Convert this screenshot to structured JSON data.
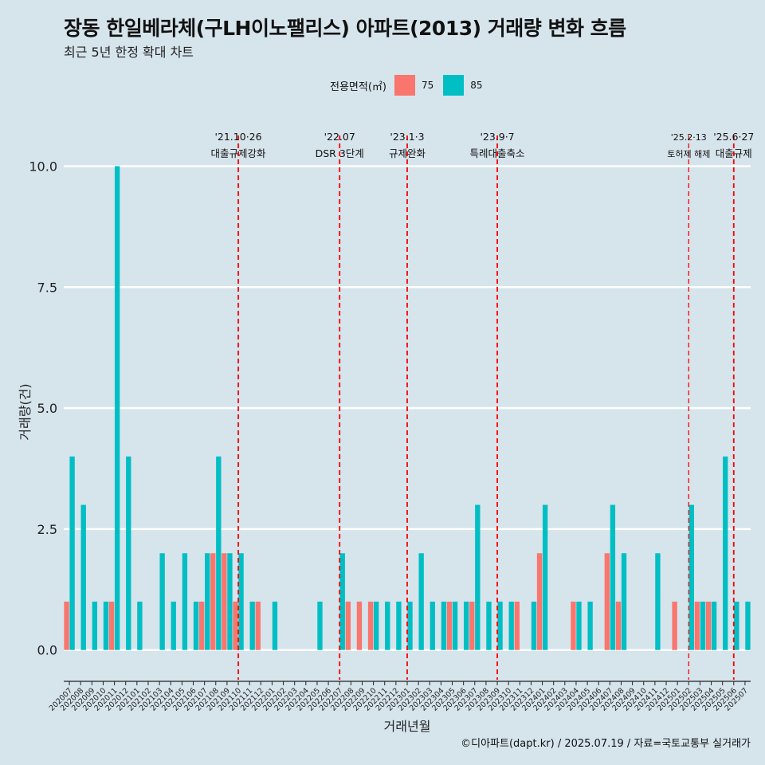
{
  "header": {
    "title": "장동 한일베라체(구LH이노팰리스) 아파트(2013) 거래량 변화 흐름",
    "subtitle": "최근 5년 한정 확대 차트"
  },
  "legend": {
    "title": "전용면적(㎡)",
    "items": [
      {
        "label": "75",
        "color": "#F8766D"
      },
      {
        "label": "85",
        "color": "#00BFC4"
      }
    ]
  },
  "caption": "©디아파트(dapt.kr) / 2025.07.19 / 자료=국토교통부 실거래가",
  "chart_data": {
    "type": "bar",
    "stacked": false,
    "dodged": true,
    "xlabel": "거래년월",
    "ylabel": "거래량(건)",
    "ylim": [
      -0.45,
      10.8
    ],
    "yticks": [
      0.0,
      2.5,
      5.0,
      7.5,
      10.0
    ],
    "ytick_labels": [
      "0.0",
      "2.5",
      "5.0",
      "7.5",
      "10.0"
    ],
    "grid": "horizontal",
    "legend_position": "top",
    "categories": [
      "202007",
      "202008",
      "202009",
      "202010",
      "202011",
      "202012",
      "202101",
      "202102",
      "202103",
      "202104",
      "202105",
      "202106",
      "202107",
      "202108",
      "202109",
      "202110",
      "202111",
      "202112",
      "202201",
      "202202",
      "202203",
      "202204",
      "202205",
      "202206",
      "202207",
      "202208",
      "202209",
      "202210",
      "202211",
      "202212",
      "202301",
      "202302",
      "202303",
      "202304",
      "202305",
      "202306",
      "202307",
      "202308",
      "202309",
      "202310",
      "202311",
      "202312",
      "202401",
      "202402",
      "202403",
      "202404",
      "202405",
      "202406",
      "202407",
      "202408",
      "202409",
      "202410",
      "202411",
      "202412",
      "202501",
      "202502",
      "202503",
      "202504",
      "202505",
      "202506",
      "202507"
    ],
    "series": [
      {
        "name": "75",
        "color": "#F8766D",
        "values": [
          1,
          0,
          0,
          0,
          1,
          0,
          0,
          0,
          0,
          0,
          0,
          0,
          1,
          2,
          2,
          1,
          0,
          1,
          0,
          0,
          0,
          0,
          0,
          0,
          0,
          1,
          1,
          1,
          0,
          0,
          0,
          0,
          0,
          0,
          1,
          0,
          1,
          0,
          0,
          0,
          1,
          0,
          2,
          0,
          0,
          1,
          0,
          0,
          2,
          1,
          0,
          0,
          0,
          0,
          1,
          0,
          1,
          1,
          0,
          0,
          0
        ]
      },
      {
        "name": "85",
        "color": "#00BFC4",
        "values": [
          4,
          3,
          1,
          1,
          10,
          4,
          1,
          0,
          2,
          1,
          2,
          1,
          2,
          4,
          2,
          2,
          1,
          0,
          1,
          0,
          0,
          0,
          1,
          0,
          2,
          0,
          0,
          1,
          1,
          1,
          1,
          2,
          1,
          1,
          1,
          1,
          3,
          1,
          1,
          1,
          0,
          1,
          3,
          0,
          0,
          1,
          1,
          0,
          3,
          2,
          0,
          0,
          2,
          0,
          0,
          3,
          1,
          1,
          4,
          1,
          1
        ]
      }
    ],
    "annotations": [
      {
        "x": "202110",
        "label_top": "'21.10·26",
        "label_bottom": "대출규제강화"
      },
      {
        "x": "202207",
        "label_top": "'22.07",
        "label_bottom": "DSR 3단계"
      },
      {
        "x": "202301",
        "label_top": "'23.1·3",
        "label_bottom": "규제완화"
      },
      {
        "x": "202309",
        "label_top": "'23.9·7",
        "label_bottom": "특례대출축소"
      },
      {
        "x": "202502",
        "label_top": "'25.2·13",
        "label_bottom": "토허제 해제",
        "small": true
      },
      {
        "x": "202506",
        "label_top": "'25.6·27",
        "label_bottom": "대출규제"
      }
    ],
    "annotation_line_color": "#FF0000"
  }
}
